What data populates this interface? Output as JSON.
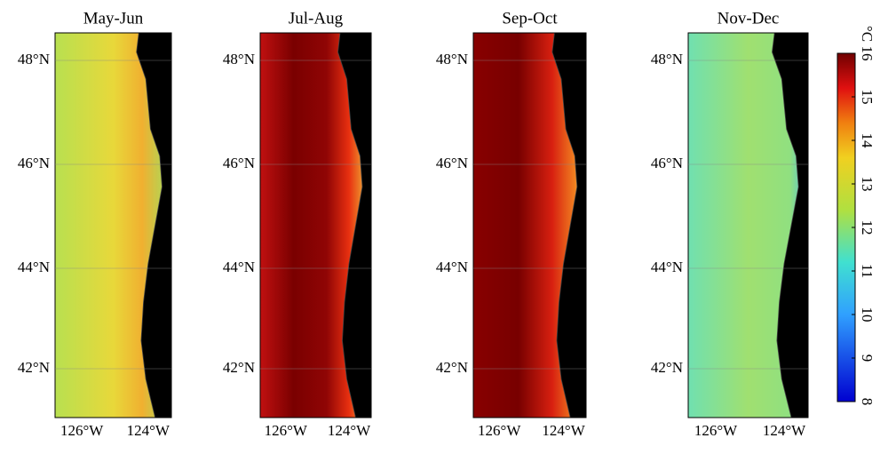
{
  "panels": [
    {
      "title": "May-Jun",
      "lat_labels": [
        "48°N",
        "46°N",
        "44°N",
        "42°N"
      ],
      "lon_labels": [
        "126°W",
        "124°W"
      ]
    },
    {
      "title": "Jul-Aug",
      "lat_labels": [
        "48°N",
        "46°N",
        "44°N",
        "42°N"
      ],
      "lon_labels": [
        "126°W",
        "124°W"
      ]
    },
    {
      "title": "Sep-Oct",
      "lat_labels": [
        "48°N",
        "46°N",
        "44°N",
        "42°N"
      ],
      "lon_labels": [
        "126°W",
        "124°W"
      ]
    },
    {
      "title": "Nov-Dec",
      "lat_labels": [
        "48°N",
        "46°N",
        "44°N",
        "42°N"
      ],
      "lon_labels": [
        "126°W",
        "124°W"
      ]
    }
  ],
  "colorbar": {
    "unit": "°C",
    "range": [
      8,
      16
    ],
    "ticks": [
      8,
      9,
      10,
      11,
      12,
      13,
      14,
      15,
      16
    ]
  }
}
